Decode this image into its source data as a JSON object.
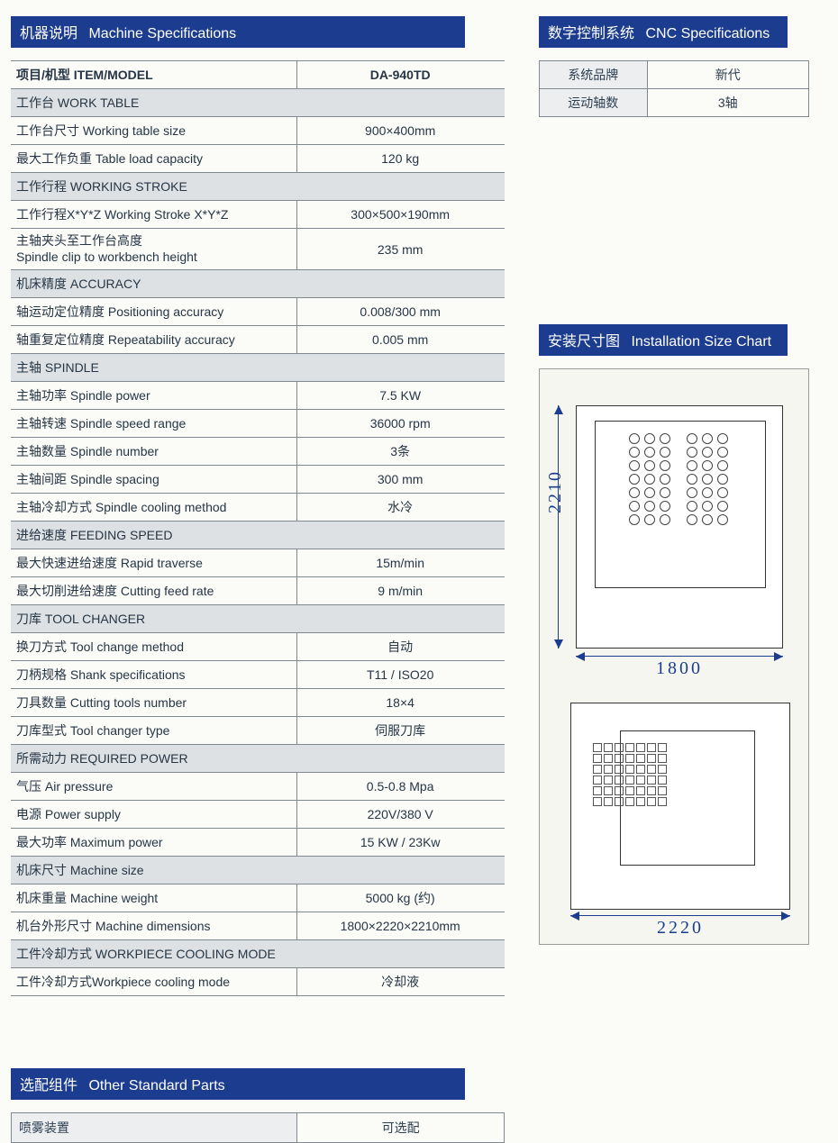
{
  "headers": {
    "machineSpec_cn": "机器说明",
    "machineSpec_en": "Machine Specifications",
    "cncSpec_cn": "数字控制系统",
    "cncSpec_en": "CNC Specifications",
    "sizeChart_cn": "安装尺寸图",
    "sizeChart_en": "Installation Size Chart",
    "otherParts_cn": "选配组件",
    "otherParts_en": "Other Standard Parts"
  },
  "spec": {
    "header_label": "项目/机型 ITEM/MODEL",
    "header_value": "DA-940TD",
    "sections": [
      {
        "title": "工作台 WORK TABLE",
        "rows": [
          {
            "label": "工作台尺寸 Working table size",
            "value": "900×400mm"
          },
          {
            "label": "最大工作负重 Table load capacity",
            "value": "120 kg"
          }
        ]
      },
      {
        "title": "工作行程 WORKING STROKE",
        "rows": [
          {
            "label": "工作行程X*Y*Z Working Stroke X*Y*Z",
            "value": "300×500×190mm"
          },
          {
            "label": "主轴夹头至工作台高度\nSpindle clip to workbench height",
            "value": "235 mm",
            "multiline": true
          }
        ]
      },
      {
        "title": "机床精度 ACCURACY",
        "rows": [
          {
            "label": "轴运动定位精度 Positioning accuracy",
            "value": "0.008/300 mm"
          },
          {
            "label": "轴重复定位精度 Repeatability accuracy",
            "value": "0.005 mm"
          }
        ]
      },
      {
        "title": "主轴 SPINDLE",
        "rows": [
          {
            "label": "主轴功率 Spindle power",
            "value": "7.5 KW"
          },
          {
            "label": "主轴转速 Spindle speed range",
            "value": "36000 rpm"
          },
          {
            "label": "主轴数量 Spindle number",
            "value": "3条"
          },
          {
            "label": "主轴间距 Spindle spacing",
            "value": "300 mm"
          },
          {
            "label": "主轴冷却方式 Spindle cooling method",
            "value": "水冷"
          }
        ]
      },
      {
        "title": "进给速度 FEEDING SPEED",
        "rows": [
          {
            "label": "最大快速进给速度 Rapid traverse",
            "value": "15m/min"
          },
          {
            "label": "最大切削进给速度 Cutting feed rate",
            "value": "9 m/min"
          }
        ]
      },
      {
        "title": "刀库 TOOL CHANGER",
        "rows": [
          {
            "label": "换刀方式 Tool change method",
            "value": "自动"
          },
          {
            "label": "刀柄规格 Shank specifications",
            "value": "T11 / ISO20"
          },
          {
            "label": "刀具数量 Cutting tools number",
            "value": "18×4"
          },
          {
            "label": "刀库型式 Tool changer type",
            "value": "伺服刀库"
          }
        ]
      },
      {
        "title": "所需动力 REQUIRED POWER",
        "rows": [
          {
            "label": "气压 Air pressure",
            "value": "0.5-0.8 Mpa"
          },
          {
            "label": "电源 Power supply",
            "value": "220V/380 V"
          },
          {
            "label": "最大功率 Maximum power",
            "value": "15 KW / 23Kw"
          }
        ]
      },
      {
        "title": "机床尺寸 Machine size",
        "rows": [
          {
            "label": "机床重量 Machine weight",
            "value": "5000 kg (约)"
          },
          {
            "label": "机台外形尺寸 Machine dimensions",
            "value": "1800×2220×2210mm"
          }
        ]
      },
      {
        "title": "工件冷却方式 WORKPIECE COOLING MODE",
        "rows": [
          {
            "label": "工件冷却方式Workpiece cooling mode",
            "value": "冷却液"
          }
        ]
      }
    ]
  },
  "cnc": {
    "rows": [
      {
        "label": "系统品牌",
        "value": "新代"
      },
      {
        "label": "运动轴数",
        "value": "3轴"
      }
    ]
  },
  "dims": {
    "height": "2210",
    "width": "1800",
    "depth": "2220"
  },
  "other": {
    "rows": [
      {
        "label": "喷雾装置",
        "value": "可选配"
      }
    ]
  },
  "style": {
    "header_bg": "#1c3d8f",
    "header_text": "#ffffff",
    "section_bg": "#dde1e4",
    "border": "#808890",
    "dim_color": "#1c3d8f"
  }
}
